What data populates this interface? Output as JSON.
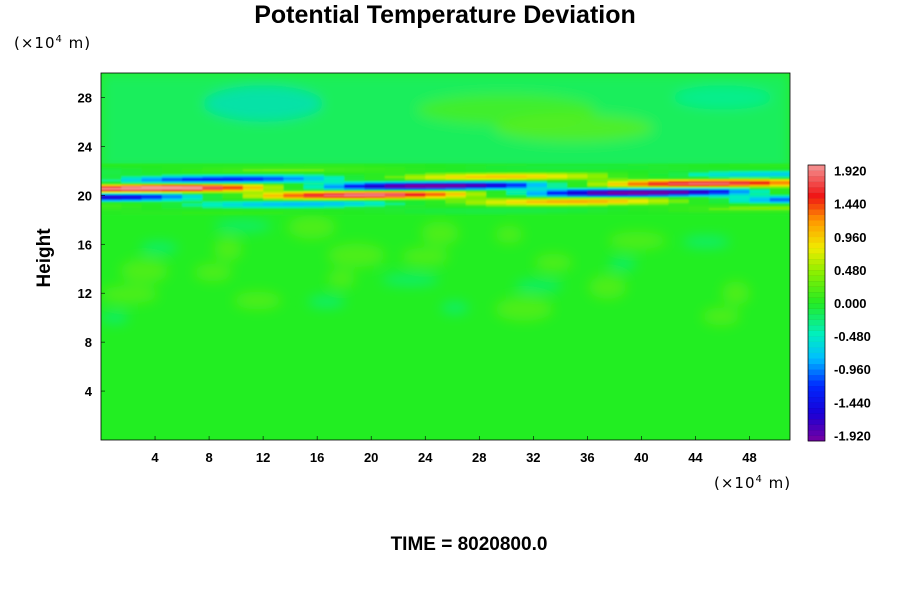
{
  "chart_data": {
    "type": "heatmap",
    "title": "Potential Temperature Deviation",
    "ylabel": "Height",
    "x_unit_prefix": "(×10",
    "x_unit_exp": "4",
    "x_unit_suffix": " m)",
    "y_unit_prefix": "(×10",
    "y_unit_exp": "4",
    "y_unit_suffix": " m)",
    "xlim": [
      0,
      51
    ],
    "ylim": [
      0,
      30
    ],
    "x_ticks": [
      4,
      8,
      12,
      16,
      20,
      24,
      28,
      32,
      36,
      40,
      44,
      48
    ],
    "y_ticks": [
      4,
      8,
      12,
      16,
      20,
      24,
      28
    ],
    "colorbar": {
      "range": [
        -2.0,
        2.0
      ],
      "tick_values": [
        1.92,
        1.44,
        0.96,
        0.48,
        0.0,
        -0.48,
        -0.96,
        -1.44,
        -1.92
      ],
      "tick_labels": [
        "1.920",
        "1.440",
        "0.960",
        "0.480",
        "0.000",
        "-0.480",
        "-0.960",
        "-1.440",
        "-1.920"
      ]
    },
    "features": {
      "background_value": 0.0,
      "upper_band_value": -0.3,
      "upper_band_y": [
        22,
        30
      ],
      "oscillation_layer_y": [
        18.5,
        22.5
      ],
      "oscillation_peak_value": 2.0,
      "oscillation_trough_value": -2.0,
      "mid_layer_y": [
        10,
        18
      ],
      "mid_layer_value": 0.3
    },
    "footer": {
      "label": "TIME = 8020800.0"
    }
  }
}
